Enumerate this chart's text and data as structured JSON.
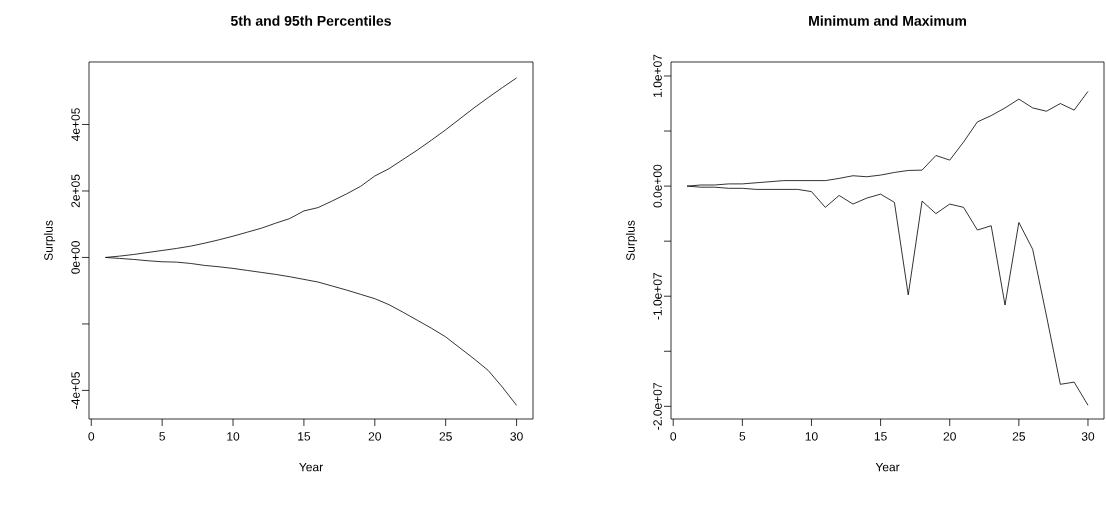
{
  "chart_data": [
    {
      "type": "line",
      "title": "5th and 95th Percentiles",
      "xlabel": "Year",
      "ylabel": "Surplus",
      "x": [
        1,
        2,
        3,
        4,
        5,
        6,
        7,
        8,
        9,
        10,
        11,
        12,
        13,
        14,
        15,
        16,
        17,
        18,
        19,
        20,
        21,
        22,
        23,
        24,
        25,
        26,
        27,
        28,
        29,
        30
      ],
      "series": [
        {
          "color": "#000000",
          "values": [
            0,
            4000,
            9000,
            15000,
            21000,
            27000,
            34000,
            43000,
            53000,
            64000,
            76000,
            88000,
            103000,
            117000,
            140000,
            150000,
            170000,
            191000,
            214000,
            245000,
            267000,
            295000,
            323000,
            353000,
            384000,
            417000,
            450000,
            481000,
            511000,
            540000
          ]
        },
        {
          "color": "#000000",
          "values": [
            0,
            -3000,
            -6000,
            -10000,
            -13000,
            -14000,
            -18000,
            -24000,
            -28000,
            -33000,
            -39000,
            -45000,
            -51000,
            -58000,
            -66000,
            -74000,
            -86000,
            -98000,
            -111000,
            -124000,
            -142000,
            -165000,
            -189000,
            -213000,
            -239000,
            -272000,
            -305000,
            -340000,
            -390000,
            -445000
          ]
        }
      ],
      "xlim": [
        -0.16,
        31.16
      ],
      "ylim": [
        -486000,
        588000
      ],
      "xticks": [
        0,
        5,
        10,
        15,
        20,
        25,
        30
      ],
      "yticks": [
        {
          "value": -400000,
          "label": "-4e+05"
        },
        {
          "value": -200000,
          "label": null
        },
        {
          "value": 0,
          "label": "0e+00"
        },
        {
          "value": 200000,
          "label": "2e+05"
        },
        {
          "value": 400000,
          "label": "4e+05"
        }
      ]
    },
    {
      "type": "line",
      "title": "Minimum and Maximum",
      "xlabel": "Year",
      "ylabel": "Surplus",
      "x": [
        1,
        2,
        3,
        4,
        5,
        6,
        7,
        8,
        9,
        10,
        11,
        12,
        13,
        14,
        15,
        16,
        17,
        18,
        19,
        20,
        21,
        22,
        23,
        24,
        25,
        26,
        27,
        28,
        29,
        30
      ],
      "series": [
        {
          "color": "#000000",
          "values": [
            0,
            100000,
            100000,
            200000,
            200000,
            300000,
            400000,
            500000,
            500000,
            500000,
            500000,
            700000,
            940000,
            850000,
            1000000,
            1240000,
            1420000,
            1450000,
            2780000,
            2360000,
            4000000,
            5830000,
            6400000,
            7100000,
            7900000,
            7100000,
            6800000,
            7500000,
            6900000,
            8600000
          ]
        },
        {
          "color": "#000000",
          "values": [
            0,
            -100000,
            -100000,
            -200000,
            -200000,
            -300000,
            -300000,
            -300000,
            -300000,
            -500000,
            -1930000,
            -850000,
            -1630000,
            -1090000,
            -730000,
            -1480000,
            -9880000,
            -1360000,
            -2500000,
            -1630000,
            -1930000,
            -3990000,
            -3600000,
            -10800000,
            -3300000,
            -5740000,
            -11800000,
            -18000000,
            -17800000,
            -19900000
          ]
        }
      ],
      "xlim": [
        -0.16,
        31.16
      ],
      "ylim": [
        -21150000,
        11270000
      ],
      "xticks": [
        0,
        5,
        10,
        15,
        20,
        25,
        30
      ],
      "yticks": [
        {
          "value": -20000000,
          "label": "-2.0e+07"
        },
        {
          "value": -15000000,
          "label": null
        },
        {
          "value": -10000000,
          "label": "-1.0e+07"
        },
        {
          "value": -5000000,
          "label": null
        },
        {
          "value": 0,
          "label": "0.0e+00"
        },
        {
          "value": 5000000,
          "label": null
        },
        {
          "value": 10000000,
          "label": "1.0e+07"
        }
      ]
    }
  ]
}
